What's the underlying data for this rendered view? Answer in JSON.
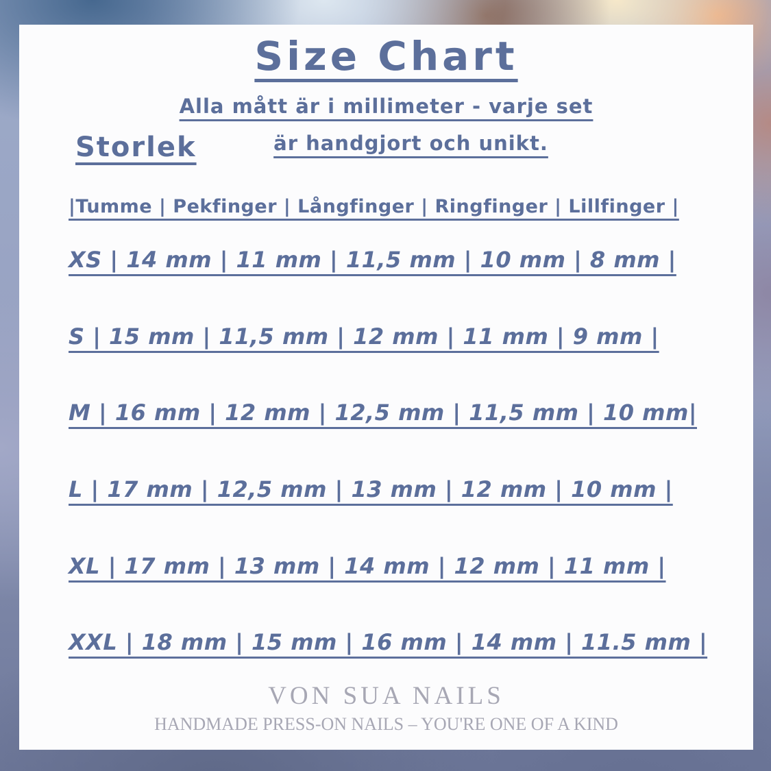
{
  "page": {
    "title": "Size Chart",
    "subtitle_line1": "Alla mått är i millimeter - varje set",
    "subtitle_line2": "är handgjort och unikt.",
    "section_label": "Storlek",
    "header_line": "|Tumme | Pekfinger | Långfinger | Ringfinger | Lillfinger |",
    "rows": [
      {
        "line": "XS | 14 mm | 11 mm | 11,5 mm | 10 mm | 8 mm |"
      },
      {
        "line": "S | 15 mm | 11,5 mm | 12 mm | 11 mm | 9 mm |"
      },
      {
        "line": "M | 16 mm | 12 mm | 12,5 mm | 11,5 mm | 10 mm|"
      },
      {
        "line": "L | 17 mm | 12,5 mm | 13 mm | 12 mm | 10 mm |"
      },
      {
        "line": "XL | 17 mm | 13 mm | 14 mm | 12 mm | 11 mm |"
      },
      {
        "line": "XXL | 18 mm | 15 mm | 16 mm | 14 mm | 11.5 mm |"
      }
    ],
    "brand": "VON SUA NAILS",
    "tagline": "HANDMADE PRESS-ON NAILS – YOU'RE ONE OF A KIND"
  },
  "colors": {
    "ink": "#5c6f9b",
    "footer": "#a7a7b4",
    "card": "#fcfcfd"
  },
  "chart_data": {
    "type": "table",
    "title": "Size Chart",
    "unit": "mm",
    "columns": [
      "Storlek",
      "Tumme",
      "Pekfinger",
      "Långfinger",
      "Ringfinger",
      "Lillfinger"
    ],
    "rows": [
      [
        "XS",
        14,
        11,
        11.5,
        10,
        8
      ],
      [
        "S",
        15,
        11.5,
        12,
        11,
        9
      ],
      [
        "M",
        16,
        12,
        12.5,
        11.5,
        10
      ],
      [
        "L",
        17,
        12.5,
        13,
        12,
        10
      ],
      [
        "XL",
        17,
        13,
        14,
        12,
        11
      ],
      [
        "XXL",
        18,
        15,
        16,
        14,
        11.5
      ]
    ],
    "notes": "Alla mått är i millimeter - varje set är handgjort och unikt."
  }
}
